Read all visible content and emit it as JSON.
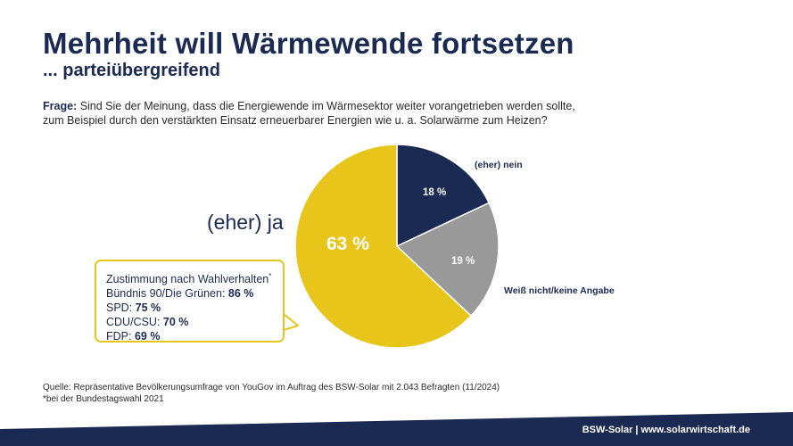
{
  "header": {
    "title": "Mehrheit will Wärmewende fortsetzen",
    "subtitle": "... parteiübergreifend"
  },
  "question": {
    "prefix": "Frage:",
    "line1": "Sind Sie der Meinung, dass die Energiewende im Wärmesektor weiter vorangetrieben werden sollte,",
    "line2": "zum Beispiel durch den verstärkten Einsatz erneuerbarer Energien wie u. a. Solarwärme zum Heizen?"
  },
  "chart_data": {
    "type": "pie",
    "slices": [
      {
        "label": "(eher) ja",
        "value": 63,
        "display": "63 %",
        "color": "#e8c51a"
      },
      {
        "label": "(eher) nein",
        "value": 18,
        "display": "18 %",
        "color": "#1b2a52"
      },
      {
        "label": "Weiß nicht/keine Angabe",
        "value": 19,
        "display": "19 %",
        "color": "#999999"
      }
    ]
  },
  "callout": {
    "heading": "Zustimmung nach Wahlverhalten",
    "heading_mark": "*",
    "rows": [
      {
        "party": "Bündnis 90/Die Grünen:",
        "value": "86 %"
      },
      {
        "party": "SPD:",
        "value": "75 %"
      },
      {
        "party": "CDU/CSU:",
        "value": "70 %"
      },
      {
        "party": "FDP:",
        "value": "69 %"
      }
    ]
  },
  "source": {
    "line1": "Quelle: Repräsentative Bevölkerungsumfrage von YouGov im Auftrag des BSW-Solar mit 2.043 Befragten (11/2024)",
    "line2": "*bei der Bundestagswahl 2021"
  },
  "footer": {
    "text": "BSW-Solar | www.solarwirtschaft.de",
    "color": "#1b2a52"
  }
}
